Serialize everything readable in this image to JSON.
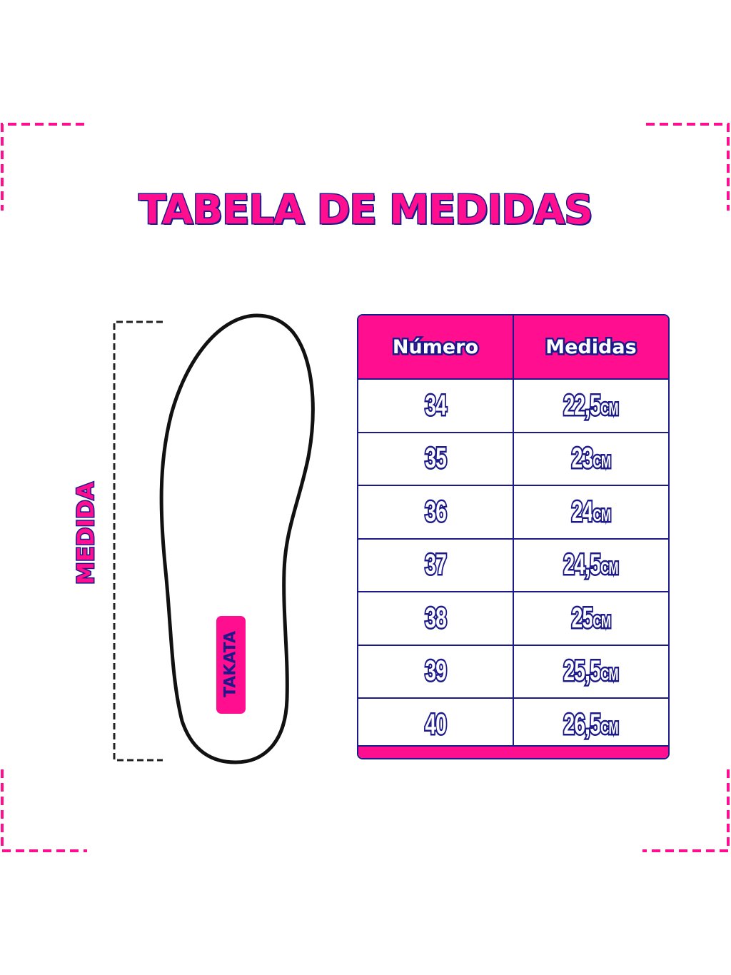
{
  "title": "TABELA DE MEDIDAS",
  "side_label": "MEDIDA",
  "insole_tag": "TAKATA",
  "colors": {
    "accent": "#ff0f8f",
    "outline": "#1c1a8a"
  },
  "table": {
    "headers": [
      "Número",
      "Medidas"
    ],
    "unit": "CM",
    "rows": [
      {
        "numero": "34",
        "medida": "22,5"
      },
      {
        "numero": "35",
        "medida": "23"
      },
      {
        "numero": "36",
        "medida": "24"
      },
      {
        "numero": "37",
        "medida": "24,5"
      },
      {
        "numero": "38",
        "medida": "25"
      },
      {
        "numero": "39",
        "medida": "25,5"
      },
      {
        "numero": "40",
        "medida": "26,5"
      }
    ]
  }
}
